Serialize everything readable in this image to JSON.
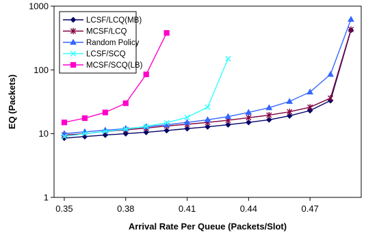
{
  "chart_data": {
    "type": "line",
    "xlabel": "Arrival Rate Per Queue (Packets/Slot)",
    "ylabel": "EQ (Packets)",
    "yscale": "log",
    "ylim": [
      1,
      1000
    ],
    "xlim": [
      0.345,
      0.495
    ],
    "xticks": [
      "0.35",
      "0.38",
      "0.41",
      "0.44",
      "0.47"
    ],
    "yticks": [
      "1",
      "10",
      "100",
      "1000"
    ],
    "grid": false,
    "legend_position": "top-left",
    "series": [
      {
        "name": "LCSF/LCQ(MB)",
        "color": "#000066",
        "marker": "diamond",
        "x": [
          0.35,
          0.36,
          0.37,
          0.38,
          0.39,
          0.4,
          0.41,
          0.42,
          0.43,
          0.44,
          0.45,
          0.46,
          0.47,
          0.48,
          0.49
        ],
        "y": [
          8.5,
          9.0,
          9.5,
          10.0,
          10.5,
          11.2,
          12.0,
          12.8,
          13.8,
          15.0,
          16.5,
          19.0,
          23.0,
          33.0,
          420
        ]
      },
      {
        "name": "MCSF/LCQ",
        "color": "#800040",
        "marker": "star",
        "x": [
          0.35,
          0.36,
          0.37,
          0.38,
          0.39,
          0.4,
          0.41,
          0.42,
          0.43,
          0.44,
          0.45,
          0.46,
          0.47,
          0.48,
          0.49
        ],
        "y": [
          9.5,
          10.0,
          10.8,
          11.5,
          12.2,
          13.2,
          14.0,
          15.0,
          16.2,
          17.8,
          19.5,
          22.0,
          26.0,
          36.0,
          430
        ]
      },
      {
        "name": "Random Policy",
        "color": "#3366ff",
        "marker": "triangle",
        "x": [
          0.35,
          0.36,
          0.37,
          0.38,
          0.39,
          0.4,
          0.41,
          0.42,
          0.43,
          0.44,
          0.45,
          0.46,
          0.47,
          0.48,
          0.49
        ],
        "y": [
          10.0,
          10.7,
          11.3,
          12.0,
          12.8,
          13.8,
          15.0,
          16.5,
          18.5,
          21.5,
          25.5,
          32.0,
          45.0,
          85.0,
          620
        ]
      },
      {
        "name": "LCSF/SCQ",
        "color": "#33ffff",
        "marker": "x",
        "x": [
          0.35,
          0.36,
          0.37,
          0.38,
          0.39,
          0.4,
          0.41,
          0.42,
          0.43
        ],
        "y": [
          9.0,
          10.0,
          10.8,
          11.8,
          13.0,
          14.8,
          18.0,
          26.0,
          150
        ]
      },
      {
        "name": "MCSF/SCQ(LB)",
        "color": "#ff00cc",
        "marker": "square",
        "x": [
          0.35,
          0.36,
          0.37,
          0.38,
          0.39,
          0.4
        ],
        "y": [
          15.0,
          17.5,
          21.5,
          30.0,
          85.0,
          380
        ]
      }
    ]
  }
}
